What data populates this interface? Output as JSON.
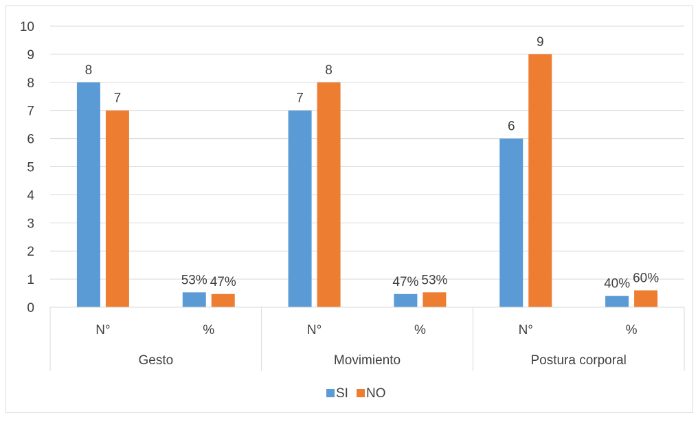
{
  "chart_data": {
    "type": "bar",
    "groups": [
      {
        "label": "Gesto",
        "categories": [
          "N°",
          "%"
        ]
      },
      {
        "label": "Movimiento",
        "categories": [
          "N°",
          "%"
        ]
      },
      {
        "label": "Postura corporal",
        "categories": [
          "N°",
          "%"
        ]
      }
    ],
    "series": [
      {
        "name": "SI",
        "color": "#5B9BD5",
        "values": [
          8,
          0.53,
          7,
          0.47,
          6,
          0.4
        ],
        "labels": [
          "8",
          "53%",
          "7",
          "47%",
          "6",
          "40%"
        ]
      },
      {
        "name": "NO",
        "color": "#ED7D31",
        "values": [
          7,
          0.47,
          8,
          0.53,
          9,
          0.6
        ],
        "labels": [
          "7",
          "47%",
          "8",
          "53%",
          "9",
          "60%"
        ]
      }
    ],
    "y_ticks": [
      "0",
      "1",
      "2",
      "3",
      "4",
      "5",
      "6",
      "7",
      "8",
      "9",
      "10"
    ],
    "ylim": [
      0,
      10
    ],
    "grid": true,
    "legend_position": "bottom"
  }
}
